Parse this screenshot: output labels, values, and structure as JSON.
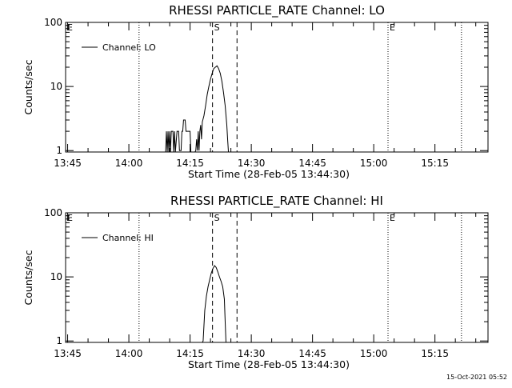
{
  "page": {
    "timestamp": "15-Oct-2021 05:52"
  },
  "chart_data": [
    {
      "type": "line",
      "title": "RHESSI PARTICLE_RATE Channel: LO",
      "xlabel": "Start Time (28-Feb-05 13:44:30)",
      "ylabel": "Counts/sec",
      "y_scale": "log",
      "ylim": [
        0.95,
        100
      ],
      "y_ticks": [
        {
          "label": "1",
          "value": 1
        },
        {
          "label": "10",
          "value": 10
        },
        {
          "label": "100",
          "value": 100
        }
      ],
      "x_range": [
        "13:44:30",
        "15:28:00"
      ],
      "x_ticks": [
        {
          "label": "13:45",
          "value": "13:45"
        },
        {
          "label": "14:00",
          "value": "14:00"
        },
        {
          "label": "14:15",
          "value": "14:15"
        },
        {
          "label": "14:30",
          "value": "14:30"
        },
        {
          "label": "14:45",
          "value": "14:45"
        },
        {
          "label": "15:00",
          "value": "15:00"
        },
        {
          "label": "15:15",
          "value": "15:15"
        }
      ],
      "legend": {
        "entries": [
          "Channel: LO"
        ],
        "placement": "top-left"
      },
      "markers": [
        {
          "label": "E",
          "time": "13:44:30",
          "style": "dotted"
        },
        {
          "label": "",
          "time": "14:02:30",
          "style": "dotted"
        },
        {
          "label": "S",
          "time": "14:20:30",
          "style": "dashed"
        },
        {
          "label": "",
          "time": "14:26:30",
          "style": "dashed"
        },
        {
          "label": "E",
          "time": "15:03:30",
          "style": "dotted"
        },
        {
          "label": "",
          "time": "15:21:30",
          "style": "dotted"
        }
      ],
      "series": [
        {
          "name": "Channel: LO",
          "data": [
            [
              "14:09:00",
              0.5
            ],
            [
              "14:09:12",
              2.0
            ],
            [
              "14:09:24",
              0.5
            ],
            [
              "14:09:36",
              2.0
            ],
            [
              "14:09:48",
              0.5
            ],
            [
              "14:10:00",
              2.0
            ],
            [
              "14:10:12",
              0.5
            ],
            [
              "14:10:24",
              2.0
            ],
            [
              "14:10:48",
              2.0
            ],
            [
              "14:11:00",
              0.5
            ],
            [
              "14:11:12",
              2.0
            ],
            [
              "14:11:24",
              0.5
            ],
            [
              "14:11:48",
              2.0
            ],
            [
              "14:12:12",
              2.0
            ],
            [
              "14:12:24",
              1.0
            ],
            [
              "14:12:48",
              1.0
            ],
            [
              "14:13:00",
              2.0
            ],
            [
              "14:13:12",
              2.0
            ],
            [
              "14:13:24",
              3.0
            ],
            [
              "14:13:48",
              3.0
            ],
            [
              "14:14:00",
              2.0
            ],
            [
              "14:14:24",
              2.0
            ],
            [
              "14:14:36",
              2.0
            ],
            [
              "14:15:00",
              2.0
            ],
            [
              "14:15:12",
              0.5
            ],
            [
              "14:16:12",
              0.5
            ],
            [
              "14:16:24",
              1.0
            ],
            [
              "14:16:36",
              1.5
            ],
            [
              "14:16:48",
              1.0
            ],
            [
              "14:17:00",
              2.0
            ],
            [
              "14:17:12",
              1.0
            ],
            [
              "14:17:24",
              2.0
            ],
            [
              "14:17:36",
              2.5
            ],
            [
              "14:17:48",
              1.5
            ],
            [
              "14:18:00",
              2.8
            ],
            [
              "14:18:24",
              3.5
            ],
            [
              "14:18:48",
              5.0
            ],
            [
              "14:19:12",
              7.5
            ],
            [
              "14:19:36",
              10.0
            ],
            [
              "14:20:00",
              13.0
            ],
            [
              "14:20:24",
              16.0
            ],
            [
              "14:20:48",
              19.0
            ],
            [
              "14:21:12",
              20.0
            ],
            [
              "14:21:36",
              21.0
            ],
            [
              "14:22:00",
              19.0
            ],
            [
              "14:22:24",
              16.0
            ],
            [
              "14:22:48",
              12.0
            ],
            [
              "14:23:12",
              8.0
            ],
            [
              "14:23:36",
              5.0
            ],
            [
              "14:24:00",
              2.5
            ],
            [
              "14:24:12",
              1.5
            ],
            [
              "14:24:24",
              0.5
            ]
          ]
        }
      ]
    },
    {
      "type": "line",
      "title": "RHESSI PARTICLE_RATE Channel: HI",
      "xlabel": "Start Time (28-Feb-05 13:44:30)",
      "ylabel": "Counts/sec",
      "y_scale": "log",
      "ylim": [
        0.95,
        100
      ],
      "y_ticks": [
        {
          "label": "1",
          "value": 1
        },
        {
          "label": "10",
          "value": 10
        },
        {
          "label": "100",
          "value": 100
        }
      ],
      "x_range": [
        "13:44:30",
        "15:28:00"
      ],
      "x_ticks": [
        {
          "label": "13:45",
          "value": "13:45"
        },
        {
          "label": "14:00",
          "value": "14:00"
        },
        {
          "label": "14:15",
          "value": "14:15"
        },
        {
          "label": "14:30",
          "value": "14:30"
        },
        {
          "label": "14:45",
          "value": "14:45"
        },
        {
          "label": "15:00",
          "value": "15:00"
        },
        {
          "label": "15:15",
          "value": "15:15"
        }
      ],
      "legend": {
        "entries": [
          "Channel: HI"
        ],
        "placement": "top-left"
      },
      "markers": [
        {
          "label": "E",
          "time": "13:44:30",
          "style": "dotted"
        },
        {
          "label": "",
          "time": "14:02:30",
          "style": "dotted"
        },
        {
          "label": "S",
          "time": "14:20:30",
          "style": "dashed"
        },
        {
          "label": "",
          "time": "14:26:30",
          "style": "dashed"
        },
        {
          "label": "E",
          "time": "15:03:30",
          "style": "dotted"
        },
        {
          "label": "",
          "time": "15:21:30",
          "style": "dotted"
        }
      ],
      "series": [
        {
          "name": "Channel: HI",
          "data": [
            [
              "14:18:00",
              0.5
            ],
            [
              "14:18:12",
              1.0
            ],
            [
              "14:18:36",
              3.0
            ],
            [
              "14:19:00",
              5.0
            ],
            [
              "14:19:24",
              7.0
            ],
            [
              "14:19:48",
              9.0
            ],
            [
              "14:20:12",
              11.5
            ],
            [
              "14:20:36",
              13.5
            ],
            [
              "14:21:00",
              15.0
            ],
            [
              "14:21:24",
              14.0
            ],
            [
              "14:21:48",
              12.0
            ],
            [
              "14:22:12",
              10.0
            ],
            [
              "14:22:36",
              8.5
            ],
            [
              "14:23:00",
              7.0
            ],
            [
              "14:23:24",
              4.5
            ],
            [
              "14:23:36",
              2.0
            ],
            [
              "14:23:48",
              0.5
            ]
          ]
        }
      ]
    }
  ]
}
